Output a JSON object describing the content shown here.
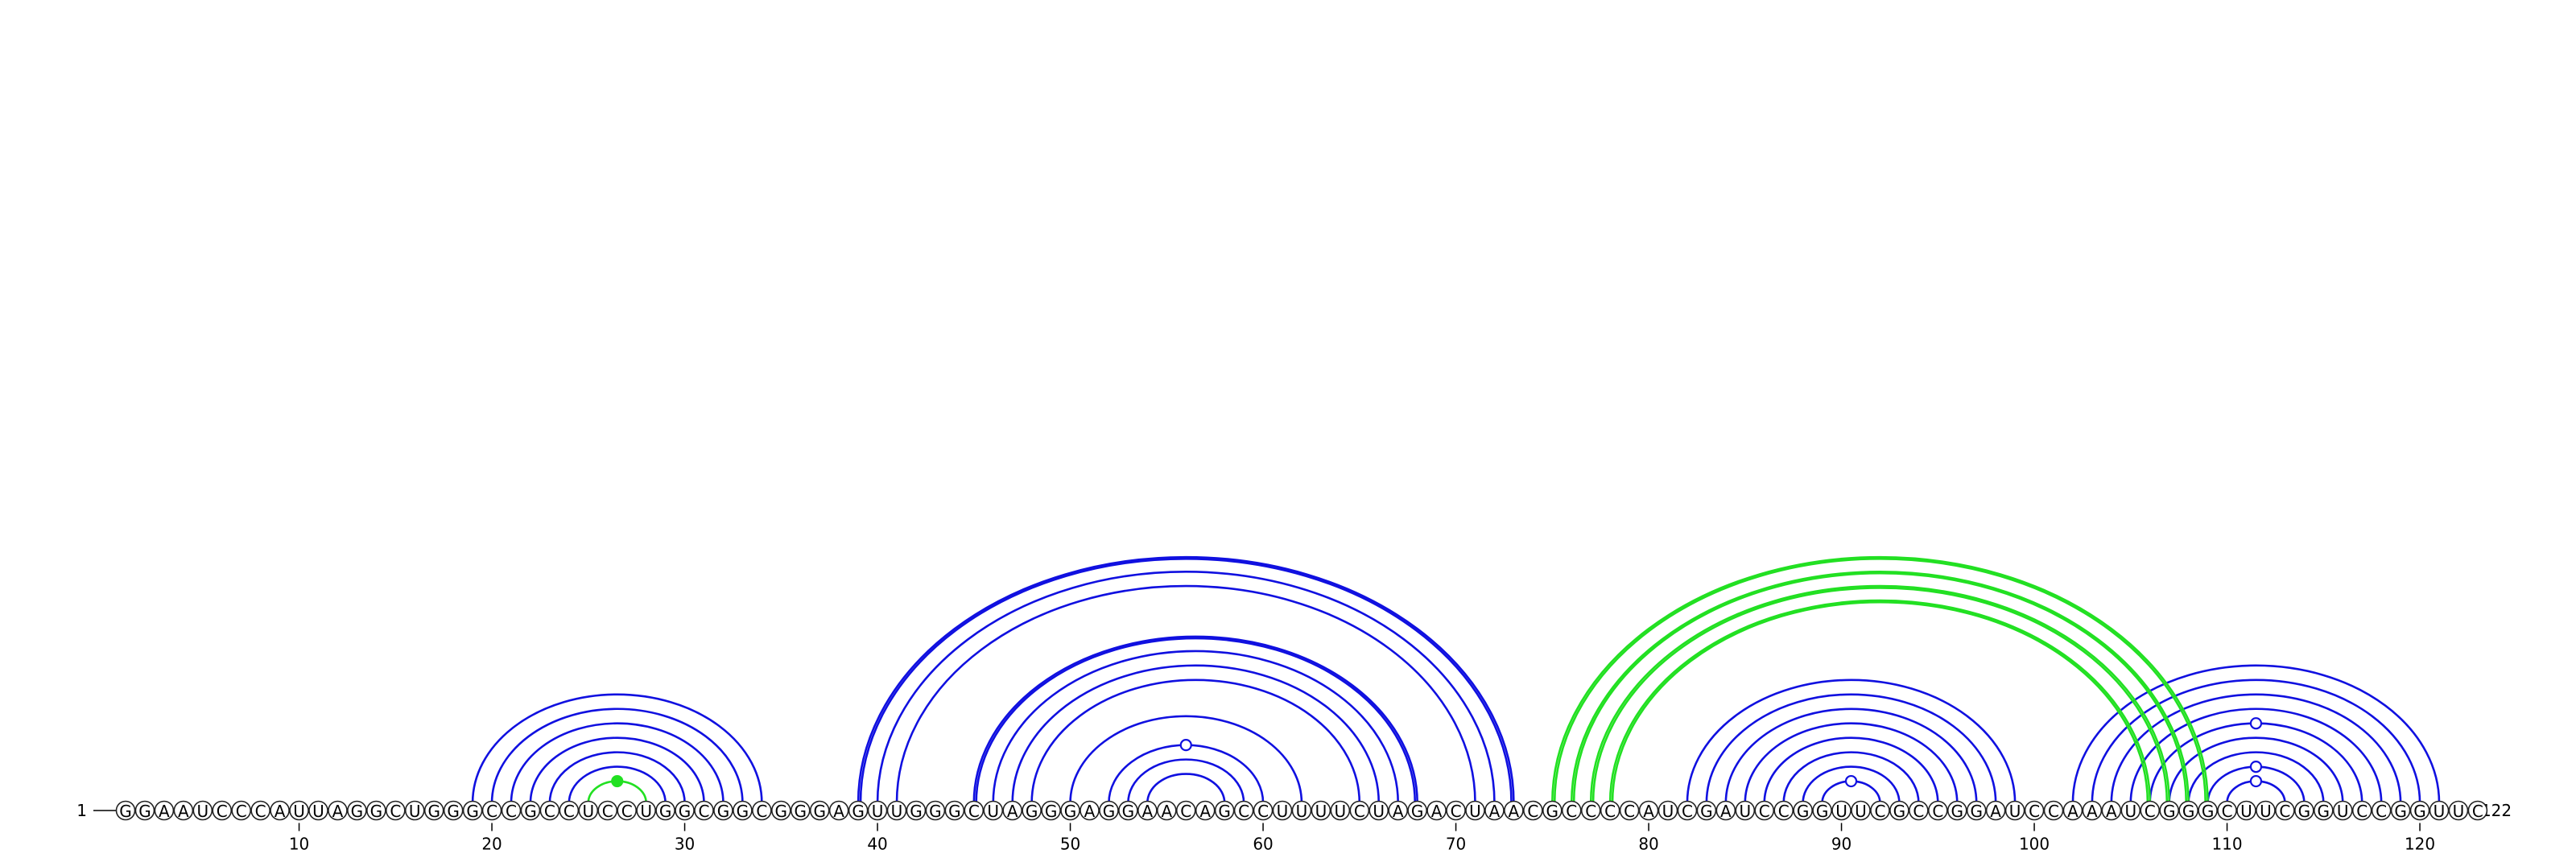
{
  "chart_data": {
    "type": "arc-diagram",
    "sequence": "GGAAUCCCAUUAGGCUGGGCCGCCUCCUGGCGGCGGGAGUUGGGCUAGGGAGGAACAGCCUUUUCUAGACUAACGCCCCAUCGAUCCGGUUCGCCGGAUCCAAAUCGGGCUUCGGUCCGGUUC",
    "length": 122,
    "start_label": "1",
    "end_label": "122",
    "tick_labels": [
      "10",
      "20",
      "30",
      "40",
      "50",
      "60",
      "70",
      "80",
      "90",
      "100",
      "110",
      "120"
    ],
    "tick_positions": [
      10,
      20,
      30,
      40,
      50,
      60,
      70,
      80,
      90,
      100,
      110,
      120
    ],
    "colors": {
      "standard": "#1010e0",
      "pseudoknot": "#22e022"
    },
    "standard_pairs": [
      [
        19,
        34
      ],
      [
        20,
        33
      ],
      [
        21,
        32
      ],
      [
        22,
        31
      ],
      [
        23,
        30
      ],
      [
        24,
        29
      ],
      [
        25,
        28
      ],
      [
        39,
        73
      ],
      [
        40,
        72
      ],
      [
        41,
        71
      ],
      [
        45,
        68
      ],
      [
        46,
        67
      ],
      [
        47,
        66
      ],
      [
        48,
        65
      ],
      [
        50,
        62
      ],
      [
        52,
        60
      ],
      [
        53,
        59
      ],
      [
        54,
        58
      ],
      [
        82,
        99
      ],
      [
        83,
        98
      ],
      [
        84,
        97
      ],
      [
        85,
        96
      ],
      [
        86,
        95
      ],
      [
        87,
        94
      ],
      [
        88,
        93
      ],
      [
        89,
        92
      ],
      [
        102,
        121
      ],
      [
        103,
        120
      ],
      [
        104,
        119
      ],
      [
        105,
        118
      ],
      [
        106,
        117
      ],
      [
        107,
        116
      ],
      [
        108,
        115
      ],
      [
        109,
        114
      ],
      [
        110,
        113
      ]
    ],
    "standard_double_pairs": [
      [
        39,
        73
      ],
      [
        45,
        68
      ]
    ],
    "pseudoknot_pairs": [
      [
        25,
        28
      ],
      [
        75,
        109
      ],
      [
        76,
        108
      ],
      [
        77,
        107
      ],
      [
        78,
        106
      ]
    ],
    "noncanonical_markers": [
      {
        "pair": [
          52,
          60
        ],
        "style": "open"
      },
      {
        "pair": [
          89,
          92
        ],
        "style": "open"
      },
      {
        "pair": [
          106,
          117
        ],
        "style": "open"
      },
      {
        "pair": [
          109,
          114
        ],
        "style": "open"
      },
      {
        "pair": [
          110,
          113
        ],
        "style": "open"
      },
      {
        "pair": [
          25,
          28
        ],
        "style": "filled-green"
      }
    ]
  }
}
